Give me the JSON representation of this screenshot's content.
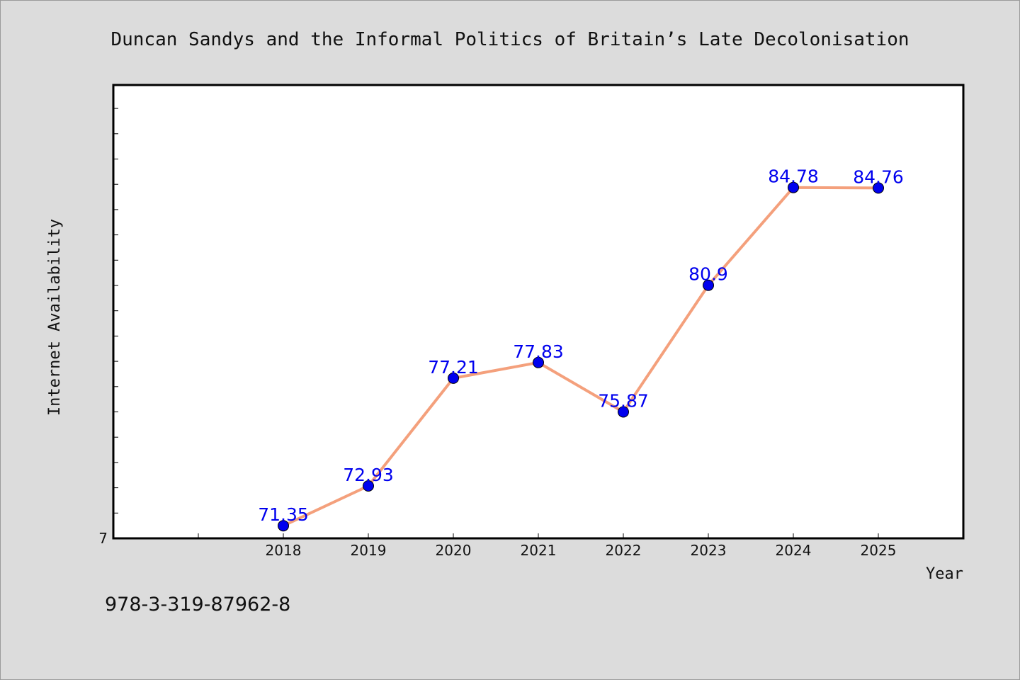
{
  "chart_data": {
    "type": "line",
    "title": "Duncan Sandys and the Informal Politics of Britain’s Late Decolonisation",
    "xlabel": "Year",
    "ylabel": "Internet Availability",
    "x": [
      "2018",
      "2019",
      "2020",
      "2021",
      "2022",
      "2023",
      "2024",
      "2025"
    ],
    "values": [
      71.35,
      72.93,
      77.21,
      77.83,
      75.87,
      80.9,
      84.78,
      84.76
    ],
    "data_labels": [
      "71.35",
      "72.93",
      "77.21",
      "77.83",
      "75.87",
      "80.9",
      "84.78",
      "84.76"
    ],
    "y_tick_label": "7",
    "ylim": [
      70.85,
      88.85
    ],
    "x_axis_slots": 10,
    "grid": false,
    "legend": "none",
    "colors": {
      "line": "#f4a07c",
      "marker": "#0000ee",
      "data_label": "#0000ee",
      "background": "#dcdcdc",
      "plot_bg": "#ffffff"
    }
  },
  "footnote": "978-3-319-87962-8"
}
